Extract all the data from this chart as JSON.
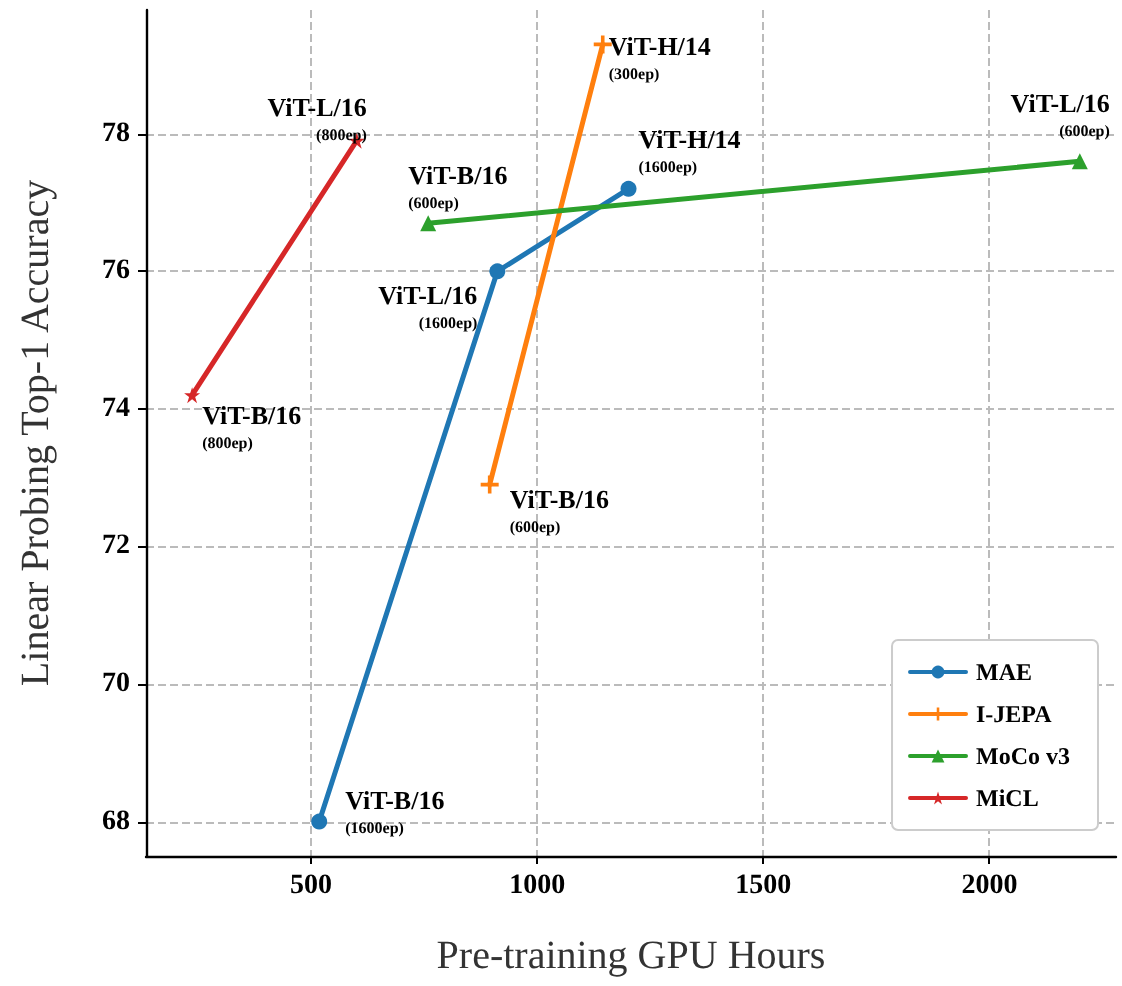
{
  "chart_data": {
    "type": "line",
    "xlabel": "Pre-training GPU Hours",
    "ylabel": "Linear Probing Top-1 Accuracy",
    "xlim": [
      135,
      2280
    ],
    "xticks": [
      500,
      1000,
      1500,
      2000
    ],
    "ylim": [
      67.5,
      79.8
    ],
    "yticks": [
      68,
      70,
      72,
      74,
      76,
      78
    ],
    "grid": true,
    "legend": "bottom right",
    "line_style": "solid",
    "series": [
      {
        "name": "MAE",
        "color": "#1f77b4",
        "marker": "circle",
        "x": [
          518,
          912,
          1202
        ],
        "values": [
          68.0,
          76.0,
          77.2
        ]
      },
      {
        "name": "I-JEPA",
        "color": "#ff7f0e",
        "marker": "cross",
        "x": [
          895,
          1145
        ],
        "values": [
          72.9,
          79.3
        ]
      },
      {
        "name": "MoCo v3",
        "color": "#2ca02c",
        "marker": "triangle",
        "x": [
          759,
          2200
        ],
        "values": [
          76.7,
          77.6
        ]
      },
      {
        "name": "MiCL",
        "color": "#d62728",
        "marker": "star",
        "x": [
          237,
          601
        ],
        "values": [
          74.2,
          77.9
        ]
      }
    ],
    "annotations": [
      {
        "text": "ViT-B/16\n(1600ep)",
        "x": 518,
        "y": 68.0
      },
      {
        "text": "ViT-L/16\n(1600ep)",
        "x": 912,
        "y": 76.0
      },
      {
        "text": "ViT-H/14\n(1600ep)",
        "x": 1202,
        "y": 77.2
      },
      {
        "text": "ViT-B/16\n(600ep)",
        "x": 895,
        "y": 72.9
      },
      {
        "text": "ViT-H/14\n(300ep)",
        "x": 1145,
        "y": 79.3
      },
      {
        "text": "ViT-B/16\n(600ep)",
        "x": 759,
        "y": 76.7
      },
      {
        "text": "ViT-L/16\n(600ep)",
        "x": 2200,
        "y": 77.6
      },
      {
        "text": "ViT-B/16\n(800ep)",
        "x": 237,
        "y": 74.2
      },
      {
        "text": "ViT-L/16\n(800ep)",
        "x": 601,
        "y": 77.9
      }
    ]
  }
}
